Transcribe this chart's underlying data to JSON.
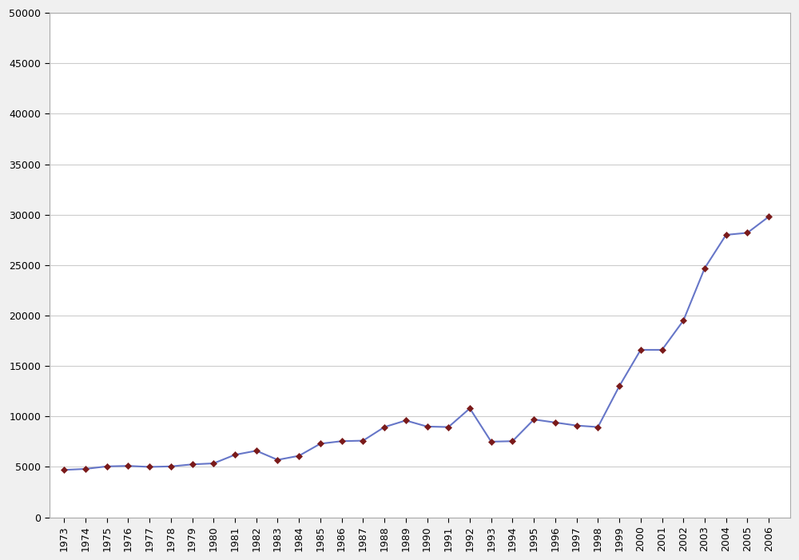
{
  "years": [
    1973,
    1974,
    1975,
    1976,
    1977,
    1978,
    1979,
    1980,
    1981,
    1982,
    1983,
    1984,
    1985,
    1986,
    1987,
    1988,
    1989,
    1990,
    1991,
    1992,
    1993,
    1994,
    1995,
    1996,
    1997,
    1998,
    1999,
    2000,
    2001,
    2002,
    2003,
    2004,
    2005,
    2006
  ],
  "values": [
    4700,
    4800,
    5050,
    5100,
    5000,
    5050,
    5250,
    5350,
    6200,
    6600,
    5700,
    6100,
    7300,
    7550,
    7600,
    8950,
    9600,
    9000,
    8950,
    10800,
    7500,
    7550,
    9700,
    9400,
    9100,
    8950,
    13000,
    16600,
    16600,
    19500,
    24700,
    28000,
    28200,
    29800
  ],
  "line_color": "#6676c8",
  "marker_color": "#7a1a1a",
  "background_color": "#f0f0f0",
  "plot_bg_color": "#ffffff",
  "ylim": [
    0,
    50000
  ],
  "grid_color": "#cccccc"
}
